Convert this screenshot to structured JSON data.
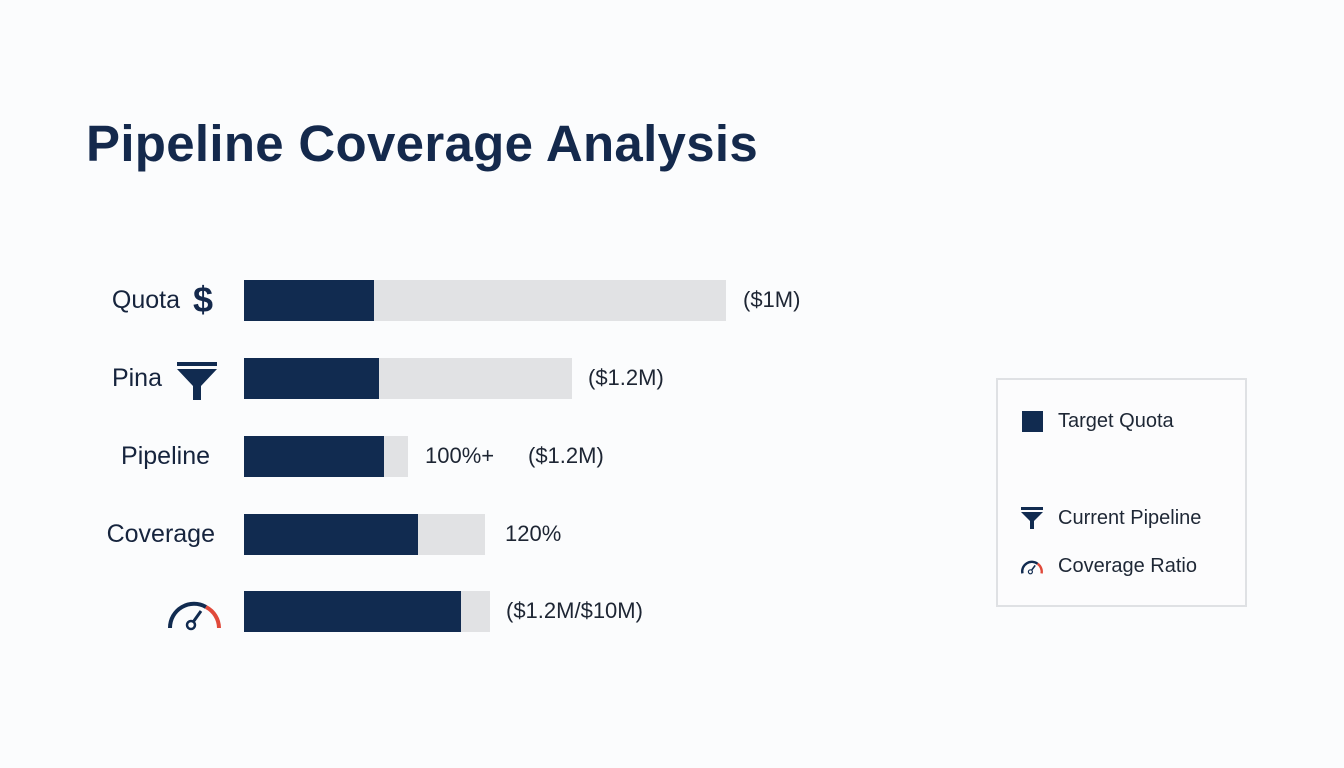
{
  "chart_data": {
    "type": "bar",
    "orientation": "horizontal",
    "title": "Pipeline Coverage Analysis",
    "categories": [
      "Quota",
      "Pina",
      "Pipeline",
      "Coverage",
      ""
    ],
    "category_icons": [
      "dollar-icon",
      "funnel-icon",
      "",
      "",
      "gauge-icon"
    ],
    "series": [
      {
        "values": [
          27,
          28,
          29,
          36,
          45
        ]
      },
      {
        "values": [
          100,
          68,
          34,
          50,
          51
        ]
      }
    ],
    "value_note_scale": "relative, 0-100",
    "annotations": [
      [
        "($1M)"
      ],
      [
        "($1.2M)"
      ],
      [
        "100%+",
        "($1.2M)"
      ],
      [
        "120%"
      ],
      [
        "($1.2M/$10M)"
      ]
    ],
    "xlim": [
      0,
      100
    ],
    "grid": false,
    "legend": {
      "placement": "right",
      "entries": [
        {
          "label": "Target Quota",
          "icon": "square-icon"
        },
        {
          "label": "Current Pipeline",
          "icon": "funnel-icon"
        },
        {
          "label": "Coverage Ratio",
          "icon": "gauge-icon"
        }
      ]
    },
    "colors": {
      "fill": "#112b50",
      "track": "#e1e2e4",
      "gauge_accent": "#e0493a",
      "title": "#14294c"
    }
  }
}
